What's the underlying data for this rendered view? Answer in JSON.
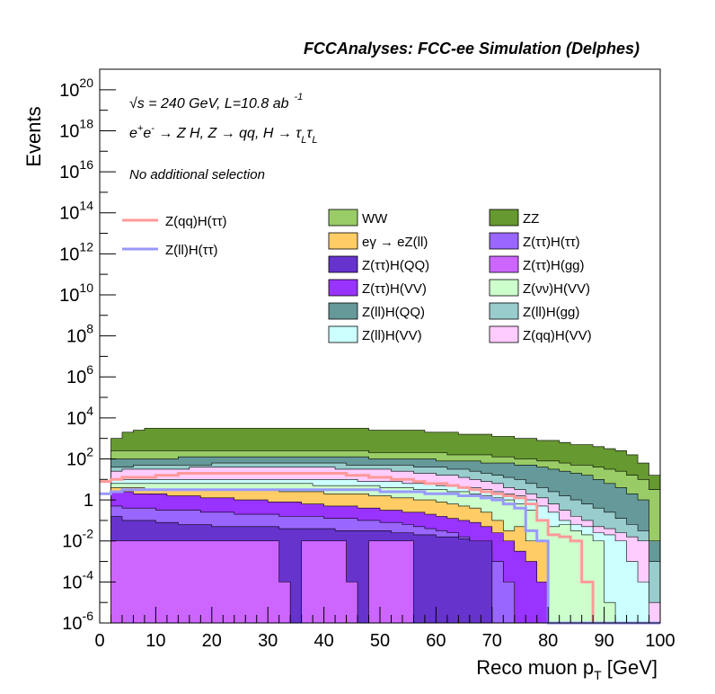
{
  "header": {
    "title": "FCCAnalyses: FCC-ee Simulation (Delphes)"
  },
  "annotations": {
    "line1_prefix": "√s = 240 GeV, L=10.8 ab",
    "line1_exp": "-1",
    "line2": "e⁺e⁻ → Z H, Z → qq, H → τ_L τ_L",
    "line3": "No additional selection"
  },
  "colors": {
    "WW": "#99cc66",
    "ZZ": "#66992f",
    "egamma": "#ffcc66",
    "Ztautau_Htautau": "#9966ff",
    "Ztautau_HQQ": "#6633cc",
    "Ztautau_Hgg": "#cc66ff",
    "Ztautau_HVV": "#9933ff",
    "Znunu_HVV": "#ccffcc",
    "Zll_HQQ": "#669999",
    "Zll_Hgg": "#99cccc",
    "Zll_HVV": "#ccffff",
    "Zqq_HVV": "#ffccff",
    "signal_qq": "#ff9999",
    "signal_ll": "#9999ff"
  },
  "chart_data": {
    "type": "area",
    "title": "FCCAnalyses: FCC-ee Simulation (Delphes)",
    "xlabel": "Reco muon p_T [GeV]",
    "ylabel": "Events",
    "xlim": [
      0,
      100
    ],
    "ylim": [
      1e-06,
      1e+21
    ],
    "yscale": "log",
    "x_ticks": [
      0,
      10,
      20,
      30,
      40,
      50,
      60,
      70,
      80,
      90,
      100
    ],
    "y_ticks": [
      "10^-6",
      "10^-4",
      "10^-2",
      "1",
      "10^2",
      "10^4",
      "10^6",
      "10^8",
      "10^10",
      "10^12",
      "10^14",
      "10^16",
      "10^18",
      "10^20"
    ],
    "bin_edges": [
      0,
      2,
      4,
      6,
      8,
      10,
      12,
      14,
      16,
      18,
      20,
      22,
      24,
      26,
      28,
      30,
      32,
      34,
      36,
      38,
      40,
      42,
      44,
      46,
      48,
      50,
      52,
      54,
      56,
      58,
      60,
      62,
      64,
      66,
      68,
      70,
      72,
      74,
      76,
      78,
      80,
      82,
      84,
      86,
      88,
      90,
      92,
      94,
      96,
      98,
      100
    ],
    "stack_order": [
      "Ztautau_Hgg",
      "Ztautau_HQQ",
      "Ztautau_Htautau",
      "Ztautau_HVV",
      "egamma",
      "Znunu_HVV",
      "Zll_HVV",
      "Zqq_HVV",
      "Zll_Hgg",
      "Zll_HQQ",
      "WW",
      "ZZ"
    ],
    "stack_top_log10": {
      "Ztautau_Hgg": [
        -7,
        -2,
        -2,
        -2,
        -2,
        -2,
        -2,
        -2,
        -2,
        -2,
        -2,
        -2,
        -2,
        -2,
        -2,
        -2,
        -4,
        -7,
        -2,
        -2,
        -2,
        -2,
        -4,
        -7,
        -2,
        -2,
        -2,
        -2,
        -7,
        -7,
        -7,
        -7,
        -7,
        -7,
        -7,
        -7,
        -7,
        -7,
        -7,
        -7,
        -7,
        -7,
        -7,
        -7,
        -7,
        -7,
        -7,
        -7,
        -7,
        -7
      ],
      "Ztautau_HQQ": [
        -7,
        -0.8,
        -1.0,
        -1.0,
        -1.0,
        -1.1,
        -1.1,
        -1.2,
        -1.2,
        -1.2,
        -1.3,
        -1.3,
        -1.3,
        -1.3,
        -1.3,
        -1.3,
        -1.4,
        -1.4,
        -1.4,
        -1.4,
        -1.4,
        -1.5,
        -1.5,
        -1.5,
        -1.5,
        -1.5,
        -1.6,
        -1.6,
        -1.7,
        -1.7,
        -1.8,
        -1.8,
        -1.9,
        -2,
        -2,
        -7,
        -7,
        -7,
        -7,
        -7,
        -7,
        -7,
        -7,
        -7,
        -7,
        -7,
        -7,
        -7,
        -7,
        -7
      ],
      "Ztautau_Htautau": [
        -7,
        -0.3,
        -0.4,
        -0.4,
        -0.4,
        -0.5,
        -0.5,
        -0.5,
        -0.5,
        -0.6,
        -0.6,
        -0.6,
        -0.7,
        -0.7,
        -0.7,
        -0.7,
        -0.8,
        -0.8,
        -0.8,
        -0.8,
        -0.9,
        -0.9,
        -0.9,
        -1.0,
        -1.0,
        -1.1,
        -1.1,
        -1.2,
        -1.3,
        -1.4,
        -1.5,
        -1.6,
        -1.8,
        -2,
        -2.5,
        -3,
        -4,
        -6,
        -7,
        -7,
        -7,
        -7,
        -7,
        -7,
        -7,
        -7,
        -7,
        -7,
        -7,
        -7
      ],
      "Ztautau_HVV": [
        -7,
        0.4,
        0.4,
        0.3,
        0.3,
        0.3,
        0.2,
        0.2,
        0.2,
        0.1,
        0.1,
        0.1,
        0.0,
        0.0,
        0.0,
        -0.1,
        -0.1,
        -0.1,
        -0.2,
        -0.2,
        -0.3,
        -0.3,
        -0.3,
        -0.4,
        -0.4,
        -0.5,
        -0.5,
        -0.6,
        -0.6,
        -0.7,
        -0.8,
        -0.9,
        -1.0,
        -1.1,
        -1.3,
        -1.6,
        -2,
        -2.5,
        -3,
        -4,
        -7,
        -7,
        -7,
        -7,
        -7,
        -7,
        -7,
        -7,
        -7,
        -7
      ],
      "egamma": [
        -7,
        0.6,
        0.6,
        0.6,
        0.5,
        0.5,
        0.5,
        0.5,
        0.5,
        0.5,
        0.5,
        0.5,
        0.5,
        0.5,
        0.5,
        0.5,
        0.4,
        0.4,
        0.4,
        0.4,
        0.3,
        0.3,
        0.3,
        0.3,
        0.2,
        0.2,
        0.1,
        0.1,
        0.0,
        0.0,
        -0.1,
        -0.2,
        -0.3,
        -0.4,
        -0.6,
        -1.0,
        -1.5,
        -1.3,
        -2,
        -2,
        -7,
        -7,
        -7,
        -7,
        -7,
        -7,
        -7,
        -7,
        -7,
        -7
      ],
      "Znunu_HVV": [
        -7,
        0.8,
        0.8,
        0.8,
        0.8,
        0.8,
        0.8,
        0.8,
        0.8,
        0.8,
        0.8,
        0.8,
        0.8,
        0.8,
        0.8,
        0.8,
        0.8,
        0.8,
        0.8,
        0.7,
        0.7,
        0.7,
        0.7,
        0.7,
        0.7,
        0.6,
        0.6,
        0.6,
        0.5,
        0.5,
        0.5,
        0.4,
        0.4,
        0.3,
        0.2,
        0.1,
        0.0,
        -0.2,
        -0.5,
        -1.0,
        -1.3,
        -1.2,
        -1.5,
        -1.7,
        -2,
        -5,
        -7,
        -7,
        -7,
        -7
      ],
      "Zll_HVV": [
        -7,
        1.0,
        1.0,
        1.0,
        1.0,
        1.0,
        1.0,
        1.0,
        1.0,
        1.0,
        1.0,
        1.0,
        1.0,
        1.0,
        1.0,
        1.0,
        1.0,
        1.0,
        1.0,
        1.0,
        1.0,
        1.0,
        1.0,
        0.9,
        0.9,
        0.9,
        0.9,
        0.8,
        0.8,
        0.8,
        0.7,
        0.7,
        0.6,
        0.6,
        0.5,
        0.4,
        0.3,
        0.2,
        0.0,
        -0.3,
        -0.6,
        -1.0,
        -1.2,
        -1.3,
        -1.6,
        -1.7,
        -2,
        -3,
        -4,
        -7
      ],
      "Zqq_HVV": [
        -7,
        1.4,
        1.5,
        1.5,
        1.5,
        1.5,
        1.5,
        1.5,
        1.6,
        1.6,
        1.6,
        1.6,
        1.6,
        1.6,
        1.6,
        1.6,
        1.6,
        1.6,
        1.6,
        1.6,
        1.6,
        1.5,
        1.5,
        1.5,
        1.5,
        1.5,
        1.4,
        1.4,
        1.3,
        1.3,
        1.2,
        1.2,
        1.1,
        1.0,
        0.9,
        0.8,
        0.6,
        0.5,
        0.3,
        0.1,
        -0.2,
        -0.5,
        -0.8,
        -1.0,
        -1.3,
        -1.4,
        -1.6,
        -1.8,
        -2,
        -5
      ],
      "Zll_Hgg": [
        -7,
        1.6,
        1.6,
        1.7,
        1.7,
        1.7,
        1.7,
        1.7,
        1.7,
        1.7,
        1.8,
        1.8,
        1.8,
        1.8,
        1.8,
        1.8,
        1.8,
        1.8,
        1.8,
        1.8,
        1.8,
        1.8,
        1.7,
        1.7,
        1.7,
        1.7,
        1.7,
        1.7,
        1.6,
        1.6,
        1.6,
        1.5,
        1.5,
        1.4,
        1.3,
        1.2,
        1.1,
        1.0,
        0.8,
        0.6,
        0.4,
        0.2,
        0.0,
        -0.2,
        -0.4,
        -0.6,
        -0.9,
        -1.2,
        -1.5,
        -3
      ],
      "Zll_HQQ": [
        -7,
        2.0,
        2.0,
        2.0,
        2.0,
        2.0,
        2.0,
        2.1,
        2.1,
        2.1,
        2.1,
        2.1,
        2.1,
        2.1,
        2.1,
        2.1,
        2.1,
        2.1,
        2.1,
        2.1,
        2.1,
        2.1,
        2.1,
        2.1,
        2.0,
        2.0,
        2.0,
        2.0,
        2.0,
        2.0,
        1.9,
        1.9,
        1.9,
        1.9,
        1.8,
        1.8,
        1.8,
        1.7,
        1.7,
        1.6,
        1.5,
        1.4,
        1.3,
        1.2,
        1.0,
        0.8,
        0.6,
        0.3,
        0.0,
        -2
      ],
      "WW": [
        -7,
        2.4,
        2.4,
        2.4,
        2.4,
        2.4,
        2.4,
        2.4,
        2.4,
        2.4,
        2.4,
        2.4,
        2.4,
        2.4,
        2.4,
        2.4,
        2.4,
        2.4,
        2.4,
        2.4,
        2.4,
        2.4,
        2.4,
        2.4,
        2.3,
        2.3,
        2.3,
        2.3,
        2.3,
        2.3,
        2.3,
        2.2,
        2.2,
        2.2,
        2.2,
        2.1,
        2.1,
        2.0,
        2.0,
        1.9,
        1.9,
        1.8,
        1.7,
        1.7,
        1.6,
        1.5,
        1.4,
        1.2,
        1.0,
        0.5
      ],
      "ZZ": [
        -7,
        3.0,
        3.3,
        3.4,
        3.5,
        3.5,
        3.5,
        3.5,
        3.5,
        3.5,
        3.5,
        3.5,
        3.5,
        3.5,
        3.5,
        3.5,
        3.5,
        3.5,
        3.5,
        3.5,
        3.5,
        3.5,
        3.5,
        3.5,
        3.4,
        3.4,
        3.4,
        3.4,
        3.4,
        3.3,
        3.3,
        3.3,
        3.2,
        3.2,
        3.2,
        3.1,
        3.1,
        3.0,
        3.0,
        2.9,
        2.9,
        2.8,
        2.7,
        2.7,
        2.6,
        2.5,
        2.4,
        2.2,
        1.8,
        1.2
      ]
    },
    "signals_log10": {
      "Zqq_Htautau": [
        0.9,
        1.0,
        1.1,
        1.1,
        1.1,
        1.2,
        1.2,
        1.3,
        1.3,
        1.3,
        1.3,
        1.3,
        1.3,
        1.3,
        1.3,
        1.3,
        1.3,
        1.3,
        1.3,
        1.3,
        1.3,
        1.3,
        1.2,
        1.2,
        1.1,
        1.1,
        1.0,
        1.0,
        0.9,
        0.8,
        0.8,
        0.7,
        0.6,
        0.5,
        0.4,
        0.3,
        0.2,
        0.1,
        -0.2,
        -1.0,
        -1.7,
        -1.8,
        -2,
        -4,
        -7,
        -7,
        -7,
        -7,
        -7,
        -7
      ],
      "Zll_Htautau": [
        0.3,
        0.4,
        0.5,
        0.5,
        0.5,
        0.5,
        0.5,
        0.5,
        0.5,
        0.5,
        0.5,
        0.5,
        0.5,
        0.5,
        0.5,
        0.5,
        0.5,
        0.5,
        0.5,
        0.5,
        0.5,
        0.5,
        0.5,
        0.5,
        0.5,
        0.4,
        0.4,
        0.4,
        0.4,
        0.3,
        0.3,
        0.3,
        0.2,
        0.2,
        0.1,
        0.0,
        -0.2,
        -0.4,
        -1.5,
        -2,
        -7,
        -7,
        -7,
        -7,
        -7,
        -7,
        -7,
        -7,
        -7,
        -7
      ]
    },
    "legend": {
      "placement": "top",
      "signals": [
        {
          "key": "Zqq_Htautau",
          "label": "Z(qq)H(ττ)",
          "color": "#ff9999"
        },
        {
          "key": "Zll_Htautau",
          "label": "Z(ll)H(ττ)",
          "color": "#9999ff"
        }
      ],
      "backgrounds": [
        {
          "key": "WW",
          "label": "WW"
        },
        {
          "key": "ZZ",
          "label": "ZZ"
        },
        {
          "key": "egamma",
          "label": "eγ → eZ(ll)"
        },
        {
          "key": "Ztautau_Htautau",
          "label": "Z(ττ)H(ττ)"
        },
        {
          "key": "Ztautau_HQQ",
          "label": "Z(ττ)H(QQ)"
        },
        {
          "key": "Ztautau_Hgg",
          "label": "Z(ττ)H(gg)"
        },
        {
          "key": "Ztautau_HVV",
          "label": "Z(ττ)H(VV)"
        },
        {
          "key": "Znunu_HVV",
          "label": "Z(νν)H(VV)"
        },
        {
          "key": "Zll_HQQ",
          "label": "Z(ll)H(QQ)"
        },
        {
          "key": "Zll_Hgg",
          "label": "Z(ll)H(gg)"
        },
        {
          "key": "Zll_HVV",
          "label": "Z(ll)H(VV)"
        },
        {
          "key": "Zqq_HVV",
          "label": "Z(qq)H(VV)"
        }
      ]
    }
  }
}
